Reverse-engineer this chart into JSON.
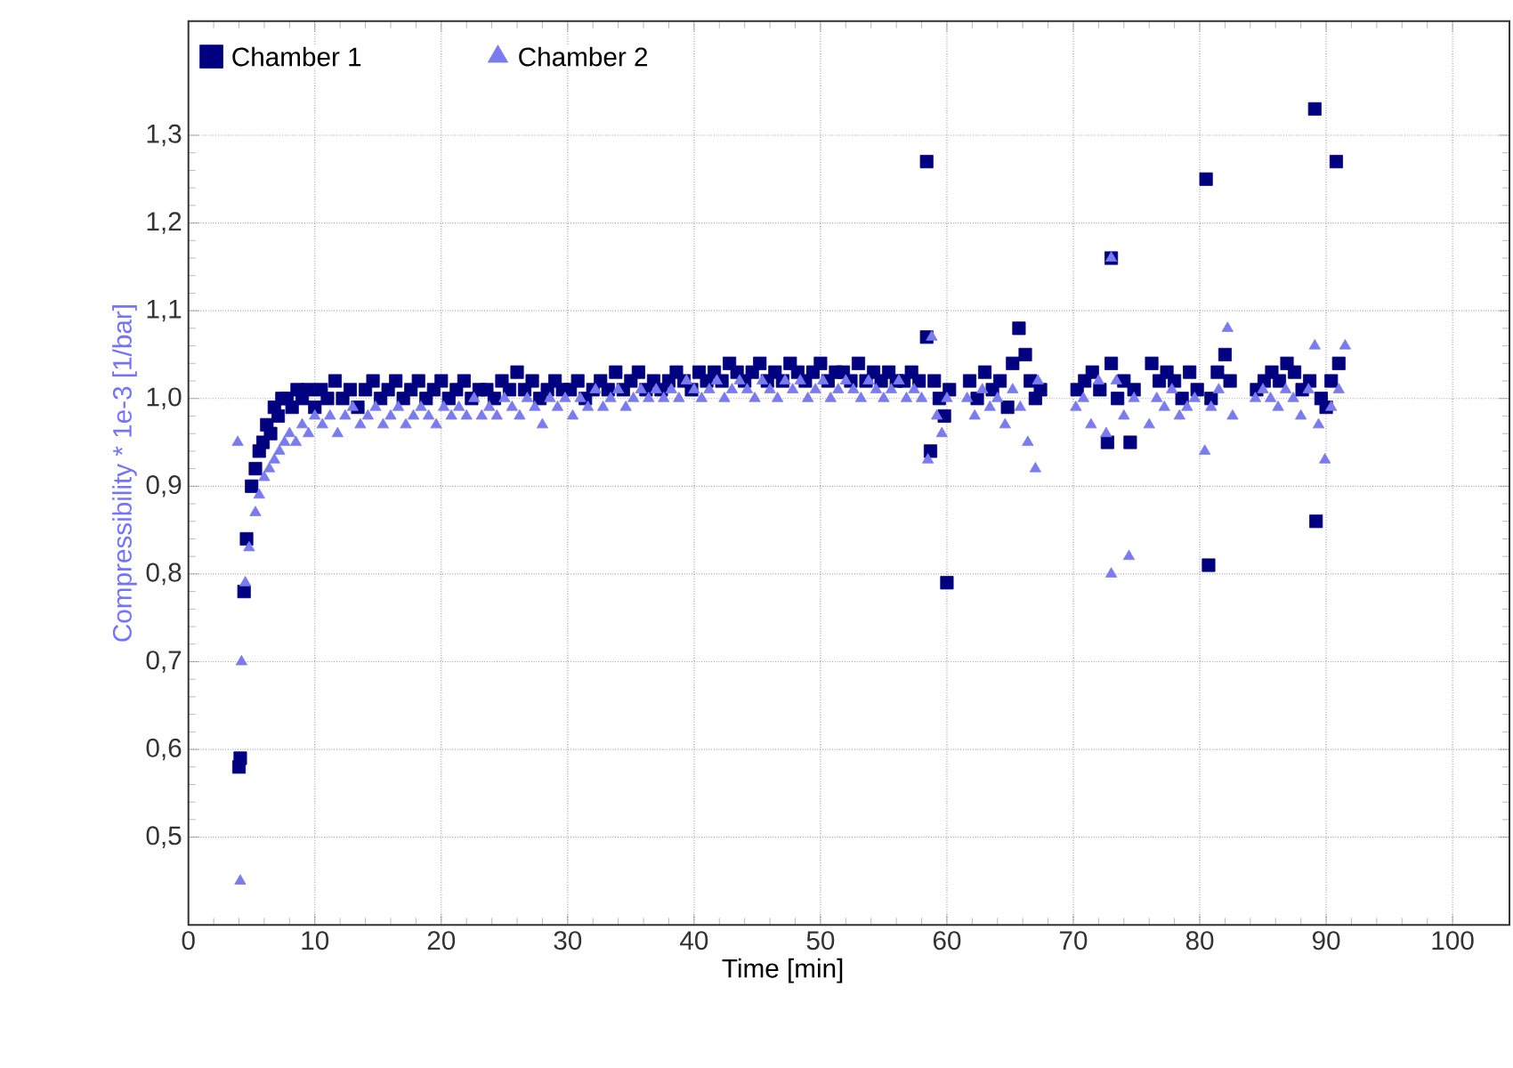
{
  "chart_data": {
    "type": "scatter",
    "xlabel": "Time [min]",
    "ylabel": "Compressibility * 1e-3 [1/bar]",
    "xlim": [
      0,
      104.5
    ],
    "ylim": [
      0.4,
      1.43
    ],
    "xticks": [
      0,
      10,
      20,
      30,
      40,
      50,
      60,
      70,
      80,
      90,
      100
    ],
    "yticks": [
      {
        "value": 0.5,
        "label": "0,5"
      },
      {
        "value": 0.6,
        "label": "0,6"
      },
      {
        "value": 0.7,
        "label": "0,7"
      },
      {
        "value": 0.8,
        "label": "0,8"
      },
      {
        "value": 0.9,
        "label": "0,9"
      },
      {
        "value": 1.0,
        "label": "1,0"
      },
      {
        "value": 1.1,
        "label": "1,1"
      },
      {
        "value": 1.2,
        "label": "1,2"
      },
      {
        "value": 1.3,
        "label": "1,3"
      }
    ],
    "grid": true,
    "legend": "top left",
    "series": [
      {
        "name": "Chamber 1",
        "color": "#000080",
        "marker": "square",
        "x": [
          4.0,
          4.1,
          4.4,
          4.6,
          5.0,
          5.3,
          5.6,
          5.9,
          6.2,
          6.5,
          6.8,
          7.1,
          7.4,
          7.8,
          8.2,
          8.6,
          9.0,
          9.5,
          10,
          10.5,
          11,
          11.6,
          12.2,
          12.8,
          13.4,
          14,
          14.6,
          15.2,
          15.8,
          16.4,
          17,
          17.6,
          18.2,
          18.8,
          19.4,
          20,
          20.6,
          21.2,
          21.8,
          22.4,
          23,
          23.6,
          24.2,
          24.8,
          25.4,
          26,
          26.6,
          27.2,
          27.8,
          28.4,
          29,
          29.6,
          30.2,
          30.8,
          31.4,
          32,
          32.6,
          33.2,
          33.8,
          34.4,
          35,
          35.6,
          36.2,
          36.8,
          37.4,
          38,
          38.6,
          39.2,
          39.8,
          40.4,
          41,
          41.6,
          42.2,
          42.8,
          43.4,
          44,
          44.6,
          45.2,
          45.8,
          46.4,
          47,
          47.6,
          48.2,
          48.8,
          49.4,
          50,
          50.6,
          51.2,
          51.8,
          52.4,
          53,
          53.6,
          54.2,
          54.8,
          55.4,
          56,
          56.6,
          57.2,
          57.8,
          58.4,
          58.4,
          58.7,
          59.0,
          59.4,
          59.8,
          60.0,
          60.2,
          61.8,
          62.4,
          63,
          63.6,
          64.2,
          64.8,
          65.2,
          65.7,
          66.2,
          66.6,
          67.0,
          67.4,
          70.3,
          70.9,
          71.5,
          72.1,
          72.7,
          73.0,
          73.0,
          73.5,
          74.0,
          74.5,
          74.8,
          76.2,
          76.8,
          77.4,
          78,
          78.6,
          79.2,
          79.8,
          80.5,
          80.7,
          80.9,
          81.4,
          82.0,
          82.4,
          84.5,
          85.1,
          85.7,
          86.3,
          86.9,
          87.5,
          88.1,
          88.7,
          89.1,
          89.2,
          89.6,
          90.0,
          90.4,
          90.8,
          91.0
        ],
        "values": [
          0.58,
          0.59,
          0.78,
          0.84,
          0.9,
          0.92,
          0.94,
          0.95,
          0.97,
          0.96,
          0.99,
          0.98,
          1.0,
          1.0,
          0.99,
          1.01,
          1.0,
          1.01,
          0.99,
          1.01,
          1.0,
          1.02,
          1.0,
          1.01,
          0.99,
          1.01,
          1.02,
          1.0,
          1.01,
          1.02,
          1.0,
          1.01,
          1.02,
          1.0,
          1.01,
          1.02,
          1.0,
          1.01,
          1.02,
          1.0,
          1.01,
          1.01,
          1.0,
          1.02,
          1.01,
          1.03,
          1.01,
          1.02,
          1.0,
          1.01,
          1.02,
          1.01,
          1.01,
          1.02,
          1.0,
          1.01,
          1.02,
          1.01,
          1.03,
          1.01,
          1.02,
          1.03,
          1.01,
          1.02,
          1.01,
          1.02,
          1.03,
          1.02,
          1.01,
          1.03,
          1.02,
          1.03,
          1.02,
          1.04,
          1.03,
          1.02,
          1.03,
          1.04,
          1.02,
          1.03,
          1.02,
          1.04,
          1.03,
          1.02,
          1.03,
          1.04,
          1.02,
          1.03,
          1.03,
          1.02,
          1.04,
          1.02,
          1.03,
          1.02,
          1.03,
          1.02,
          1.02,
          1.03,
          1.02,
          1.27,
          1.07,
          0.94,
          1.02,
          1.0,
          0.98,
          0.79,
          1.01,
          1.02,
          1.0,
          1.03,
          1.01,
          1.02,
          0.99,
          1.04,
          1.08,
          1.05,
          1.02,
          1.0,
          1.01,
          1.01,
          1.02,
          1.03,
          1.01,
          0.95,
          1.16,
          1.04,
          1.0,
          1.02,
          0.95,
          1.01,
          1.04,
          1.02,
          1.03,
          1.02,
          1.0,
          1.03,
          1.01,
          1.25,
          0.81,
          1.0,
          1.03,
          1.05,
          1.02,
          1.01,
          1.02,
          1.03,
          1.02,
          1.04,
          1.03,
          1.01,
          1.02,
          1.33,
          0.86,
          1.0,
          0.99,
          1.02,
          1.27,
          1.04
        ]
      },
      {
        "name": "Chamber 2",
        "color": "#7b7bf0",
        "marker": "triangle",
        "x": [
          3.9,
          4.1,
          4.2,
          4.5,
          4.8,
          5.3,
          5.6,
          6.0,
          6.4,
          6.8,
          7.2,
          7.6,
          8.0,
          8.5,
          9,
          9.5,
          10,
          10.6,
          11.2,
          11.8,
          12.4,
          13,
          13.6,
          14.2,
          14.8,
          15.4,
          16,
          16.6,
          17.2,
          17.8,
          18.4,
          19,
          19.6,
          20.2,
          20.8,
          21.4,
          22,
          22.6,
          23.2,
          23.8,
          24.4,
          25,
          25.6,
          26.2,
          26.8,
          27.4,
          28,
          28.6,
          29.2,
          29.8,
          30.4,
          31,
          31.6,
          32.2,
          32.8,
          33.4,
          34,
          34.6,
          35.2,
          35.8,
          36.4,
          37,
          37.6,
          38.2,
          38.8,
          39.4,
          40,
          40.6,
          41.2,
          41.8,
          42.4,
          43,
          43.6,
          44.2,
          44.8,
          45.4,
          46,
          46.6,
          47.2,
          47.8,
          48.4,
          49,
          49.6,
          50.2,
          50.8,
          51.4,
          52,
          52.6,
          53.2,
          53.8,
          54.4,
          55,
          55.6,
          56.2,
          56.8,
          57.4,
          58.0,
          58.5,
          58.8,
          59.2,
          59.6,
          60.0,
          61.6,
          62.2,
          62.8,
          63.4,
          64,
          64.6,
          65.2,
          65.8,
          66.4,
          67.0,
          67.2,
          70.2,
          70.8,
          71.4,
          72,
          72.6,
          73.0,
          73.0,
          73.4,
          74.0,
          74.4,
          74.8,
          76.0,
          76.6,
          77.2,
          77.8,
          78.4,
          79,
          79.6,
          80.4,
          80.9,
          81.5,
          82.2,
          82.6,
          84.4,
          85,
          85.6,
          86.2,
          86.8,
          87.4,
          88,
          88.6,
          89.1,
          89.4,
          89.9,
          90.4,
          91.0,
          91.5
        ],
        "values": [
          0.95,
          0.45,
          0.7,
          0.79,
          0.83,
          0.87,
          0.89,
          0.91,
          0.92,
          0.93,
          0.94,
          0.95,
          0.96,
          0.95,
          0.97,
          0.96,
          0.98,
          0.97,
          0.98,
          0.96,
          0.98,
          0.99,
          0.97,
          0.98,
          0.99,
          0.97,
          0.98,
          0.99,
          0.97,
          0.98,
          0.99,
          0.98,
          0.97,
          0.99,
          0.98,
          0.99,
          0.98,
          1.0,
          0.98,
          0.99,
          0.98,
          1.0,
          0.99,
          0.98,
          1.0,
          0.99,
          0.97,
          1.0,
          0.99,
          1.0,
          0.98,
          1.0,
          0.99,
          1.01,
          0.99,
          1.0,
          1.01,
          0.99,
          1.0,
          1.01,
          1.0,
          1.01,
          1.0,
          1.01,
          1.0,
          1.02,
          1.01,
          1.0,
          1.01,
          1.02,
          1.0,
          1.01,
          1.02,
          1.01,
          1.0,
          1.02,
          1.01,
          1.0,
          1.02,
          1.01,
          1.02,
          1.0,
          1.01,
          1.02,
          1.0,
          1.01,
          1.02,
          1.01,
          1.0,
          1.02,
          1.01,
          1.0,
          1.01,
          1.02,
          1.0,
          1.01,
          1.0,
          0.93,
          1.07,
          0.98,
          0.96,
          1.0,
          1.0,
          0.98,
          1.01,
          0.99,
          1.0,
          0.97,
          1.01,
          0.99,
          0.95,
          0.92,
          1.02,
          0.99,
          1.0,
          0.97,
          1.02,
          0.96,
          1.16,
          0.8,
          1.02,
          0.98,
          0.82,
          1.0,
          0.97,
          1.0,
          0.99,
          1.01,
          0.98,
          0.99,
          1.0,
          0.94,
          0.99,
          1.01,
          1.08,
          0.98,
          1.0,
          1.01,
          1.0,
          0.99,
          1.01,
          1.0,
          0.98,
          1.01,
          1.06,
          0.97,
          0.93,
          0.99,
          1.01,
          1.06
        ]
      }
    ]
  }
}
